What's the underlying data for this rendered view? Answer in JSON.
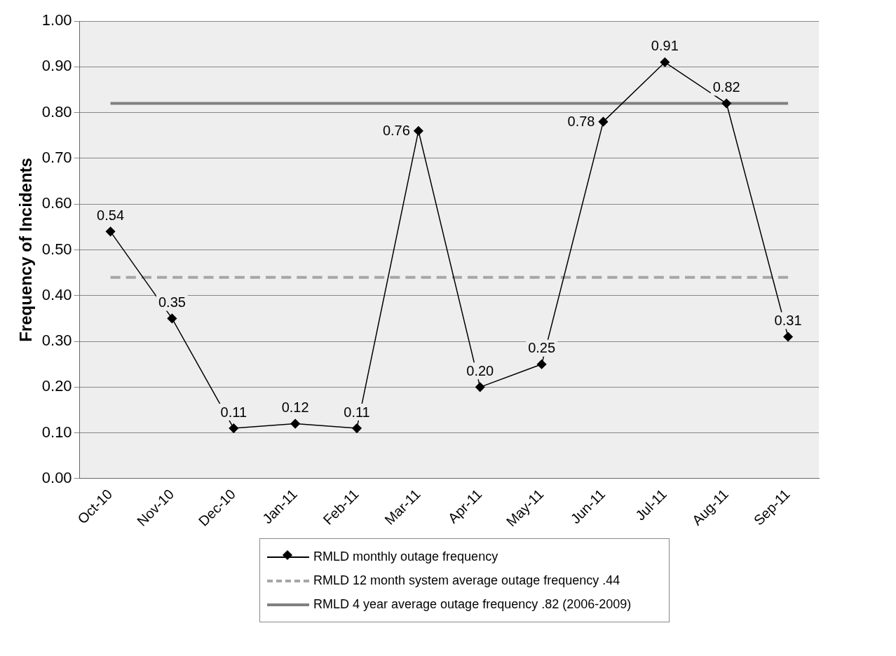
{
  "chart_data": {
    "type": "line",
    "ylabel": "Frequency of Incidents",
    "categories": [
      "Oct-10",
      "Nov-10",
      "Dec-10",
      "Jan-11",
      "Feb-11",
      "Mar-11",
      "Apr-11",
      "May-11",
      "Jun-11",
      "Jul-11",
      "Aug-11",
      "Sep-11"
    ],
    "series": [
      {
        "name": "RMLD monthly outage frequency",
        "color": "#000000",
        "marker": "diamond",
        "line_style": "solid",
        "values": [
          0.54,
          0.35,
          0.11,
          0.12,
          0.11,
          0.76,
          0.2,
          0.25,
          0.78,
          0.91,
          0.82,
          0.31
        ],
        "value_labels": [
          "0.54",
          "0.35",
          "0.11",
          "0.12",
          "0.11",
          "0.76",
          "0.20",
          "0.25",
          "0.78",
          "0.91",
          "0.82",
          "0.31"
        ]
      },
      {
        "name": "RMLD 12 month system average outage frequency .44",
        "color": "#a6a6a6",
        "marker": "none",
        "line_style": "dashed",
        "values": [
          0.44,
          0.44,
          0.44,
          0.44,
          0.44,
          0.44,
          0.44,
          0.44,
          0.44,
          0.44,
          0.44,
          0.44
        ]
      },
      {
        "name": "RMLD 4 year average outage frequency .82 (2006-2009)",
        "color": "#808080",
        "marker": "none",
        "line_style": "solid",
        "values": [
          0.82,
          0.82,
          0.82,
          0.82,
          0.82,
          0.82,
          0.82,
          0.82,
          0.82,
          0.82,
          0.82,
          0.82
        ]
      }
    ],
    "ylim": [
      0,
      1
    ],
    "yticks": [
      {
        "value": 0,
        "label": "0.00"
      },
      {
        "value": 0.1,
        "label": "0.10"
      },
      {
        "value": 0.2,
        "label": "0.20"
      },
      {
        "value": 0.3,
        "label": "0.30"
      },
      {
        "value": 0.4,
        "label": "0.40"
      },
      {
        "value": 0.5,
        "label": "0.50"
      },
      {
        "value": 0.6,
        "label": "0.60"
      },
      {
        "value": 0.7,
        "label": "0.70"
      },
      {
        "value": 0.8,
        "label": "0.80"
      },
      {
        "value": 0.9,
        "label": "0.90"
      },
      {
        "value": 1,
        "label": "1.00"
      }
    ],
    "grid": "y",
    "legend": "bottom"
  }
}
